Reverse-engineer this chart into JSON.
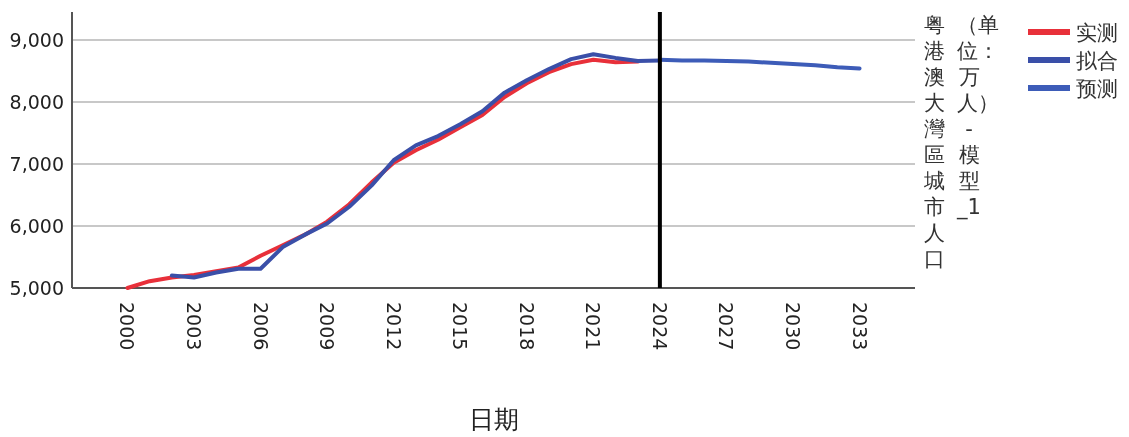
{
  "chart_data": {
    "type": "line",
    "xlabel": "日期",
    "ylabel": "粤港澳大灣區城市人口（单位：万人）-模型_1",
    "xlim": [
      1997.5,
      2035.5
    ],
    "xticks": [
      2000,
      2003,
      2006,
      2009,
      2012,
      2015,
      2018,
      2021,
      2024,
      2027,
      2030,
      2033
    ],
    "ylim": [
      5000,
      9450
    ],
    "yticks": [
      {
        "value": 5000,
        "label": "5,000"
      },
      {
        "value": 6000,
        "label": "6,000"
      },
      {
        "value": 7000,
        "label": "7,000"
      },
      {
        "value": 8000,
        "label": "8,000"
      },
      {
        "value": 9000,
        "label": "9,000"
      }
    ],
    "grid": "y",
    "legend": "top right",
    "ref_lines": [
      {
        "axis": "x",
        "value": 2024,
        "color": "#000000"
      }
    ],
    "series": [
      {
        "name": "实测",
        "color": "#e8303a",
        "x": [
          2000,
          2001,
          2002,
          2003,
          2004,
          2005,
          2006,
          2007,
          2008,
          2009,
          2010,
          2011,
          2012,
          2013,
          2014,
          2015,
          2016,
          2017,
          2018,
          2019,
          2020,
          2021,
          2022,
          2023
        ],
        "values": [
          5000,
          5110,
          5170,
          5210,
          5270,
          5330,
          5520,
          5690,
          5860,
          6070,
          6350,
          6700,
          7020,
          7220,
          7390,
          7590,
          7790,
          8080,
          8300,
          8480,
          8610,
          8680,
          8640,
          8650
        ]
      },
      {
        "name": "拟合",
        "color": "#3a4fa8",
        "x": [
          2002,
          2003,
          2004,
          2005,
          2006,
          2007,
          2008,
          2009,
          2010,
          2011,
          2012,
          2013,
          2014,
          2015,
          2016,
          2017,
          2018,
          2019,
          2020,
          2021,
          2022,
          2023,
          2024
        ],
        "values": [
          5200,
          5170,
          5250,
          5310,
          5310,
          5660,
          5860,
          6040,
          6310,
          6650,
          7060,
          7300,
          7450,
          7640,
          7850,
          8150,
          8350,
          8530,
          8690,
          8770,
          8710,
          8660,
          8670
        ]
      },
      {
        "name": "预测",
        "color": "#3d5cb8",
        "x": [
          2024,
          2025,
          2026,
          2027,
          2028,
          2029,
          2030,
          2031,
          2032,
          2033
        ],
        "values": [
          8680,
          8670,
          8670,
          8660,
          8650,
          8630,
          8610,
          8590,
          8560,
          8540
        ]
      }
    ]
  }
}
